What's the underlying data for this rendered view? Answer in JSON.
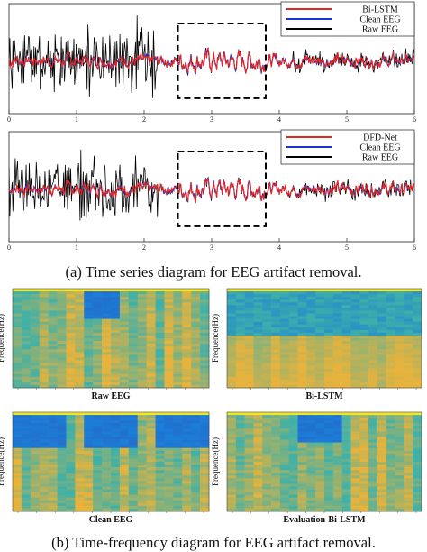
{
  "captions": {
    "a": "(a) Time series diagram for EEG artifact removal.",
    "b": "(b) Time-frequency diagram for EEG artifact removal."
  },
  "colors": {
    "raw": "#000000",
    "clean": "#1f2fd6",
    "model": "#e8261f",
    "dashed_box": "#000000",
    "spec_low": "#1a7fd8",
    "spec_mid": "#3fb0a8",
    "spec_high": "#e7b33c",
    "spec_top": "#f3e62a"
  },
  "chart_data": [
    {
      "type": "line",
      "x_ticks": [
        "0",
        "1",
        "2",
        "3",
        "4",
        "5",
        "6"
      ],
      "xlim": [
        0,
        6
      ],
      "legend_placement": "top-right",
      "highlight_region_x": [
        2.5,
        3.8
      ],
      "series": [
        {
          "name": "Bi-LSTM",
          "color": "#e8261f",
          "kind": "model",
          "seed": 11
        },
        {
          "name": "Clean EEG",
          "color": "#1f2fd6",
          "kind": "clean",
          "seed": 7
        },
        {
          "name": "Raw EEG",
          "color": "#000000",
          "kind": "raw",
          "seed": 3
        }
      ]
    },
    {
      "type": "line",
      "x_ticks": [
        "0",
        "1",
        "2",
        "3",
        "4",
        "5",
        "6"
      ],
      "xlim": [
        0,
        6
      ],
      "legend_placement": "top-right",
      "highlight_region_x": [
        2.5,
        3.8
      ],
      "series": [
        {
          "name": "DFD-Net",
          "color": "#e8261f",
          "kind": "model",
          "seed": 19
        },
        {
          "name": "Clean EEG",
          "color": "#1f2fd6",
          "kind": "clean",
          "seed": 7
        },
        {
          "name": "Raw EEG",
          "color": "#000000",
          "kind": "raw",
          "seed": 5
        }
      ]
    },
    {
      "type": "heatmap",
      "title": "Raw EEG",
      "ylabel": "Frequence(Hz)",
      "blue_block_cols": [
        8,
        12
      ],
      "blue_block_rows": [
        0,
        0.3
      ],
      "blue_band_rows": [
        0,
        0
      ],
      "seed": 21
    },
    {
      "type": "heatmap",
      "title": "Bi-LSTM",
      "ylabel": "Frequence(Hz)",
      "blue_block_cols": [
        0,
        0
      ],
      "blue_block_rows": [
        0,
        0
      ],
      "blue_band_rows": [
        0,
        0.45
      ],
      "seed": 33
    },
    {
      "type": "heatmap",
      "title": "Clean EEG",
      "ylabel": "Frequence(Hz)",
      "blue_block_cols": [
        0,
        0
      ],
      "blue_block_rows": [
        0,
        0.36
      ],
      "blue_band_full": true,
      "green_gaps": [
        [
          6,
          8
        ],
        [
          14,
          16
        ]
      ],
      "seed": 41
    },
    {
      "type": "heatmap",
      "title": "Evaluation-Bi-LSTM",
      "ylabel": "Frequence(Hz)",
      "blue_block_cols": [
        8,
        13
      ],
      "blue_block_rows": [
        0,
        0.3
      ],
      "blue_band_rows": [
        0,
        0
      ],
      "seed": 55
    }
  ]
}
